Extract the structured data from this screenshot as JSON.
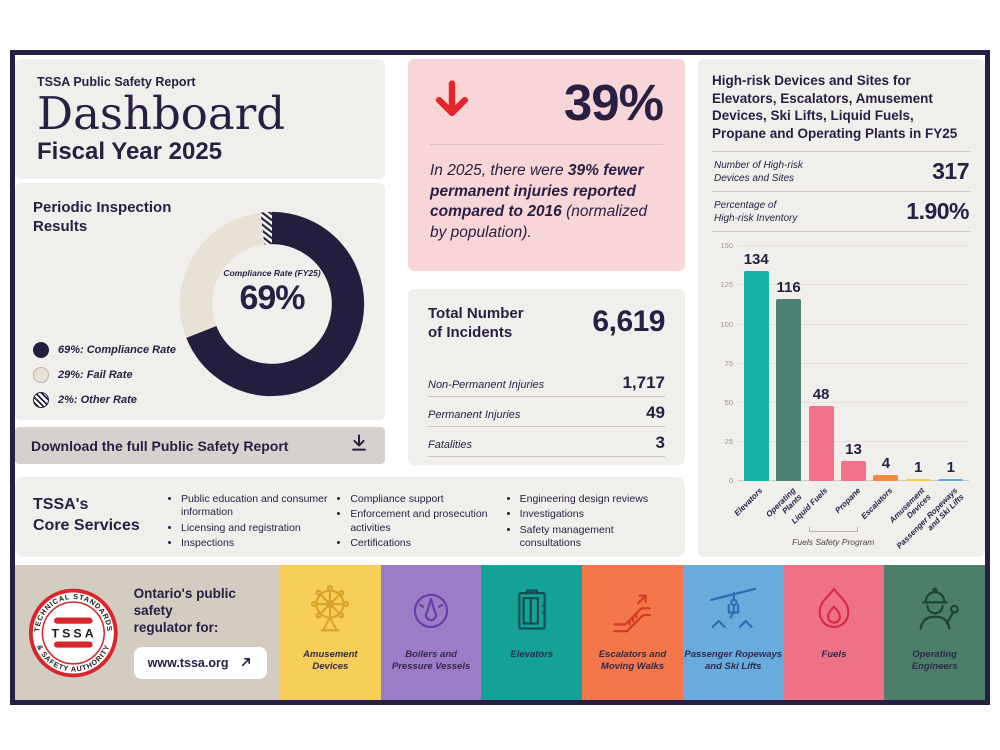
{
  "brand": {
    "navy": "#282044",
    "panel_bg": "#f1efec",
    "pink_bg": "#f8d5d6",
    "red": "#e4252b",
    "download_bg": "#d5d1ce",
    "footer_grey": "#d2ccc1",
    "donut_navy": "#241d3e",
    "donut_cream": "#e7e1d6"
  },
  "header": {
    "eyebrow": "TSSA Public Safety Report",
    "title": "Dashboard",
    "subtitle": "Fiscal Year 2025"
  },
  "inspection": {
    "heading": "Periodic Inspection\nResults",
    "center_label": "Compliance Rate (FY25)",
    "center_value": "69%",
    "segments": [
      {
        "value": 69,
        "style": "navy",
        "label": "69%: Compliance Rate"
      },
      {
        "value": 29,
        "style": "cream",
        "label": "29%: Fail Rate"
      },
      {
        "value": 2,
        "style": "hatch",
        "label": "2%: Other Rate"
      }
    ]
  },
  "download": {
    "label": "Download the full Public Safety Report"
  },
  "highlight": {
    "big_value": "39%",
    "text_prefix": "In 2025, there were ",
    "text_bold": "39% fewer permanent injuries reported compared to 2016",
    "text_suffix": " (normalized by population)."
  },
  "incidents": {
    "heading": "Total Number\nof Incidents",
    "total": "6,619",
    "rows": [
      {
        "label": "Non-Permanent Injuries",
        "value": "1,717"
      },
      {
        "label": "Permanent Injuries",
        "value": "49"
      },
      {
        "label": "Fatalities",
        "value": "3"
      }
    ]
  },
  "high_risk": {
    "title": "High-risk Devices and Sites for Elevators, Escalators, Amusement Devices, Ski Lifts, Liquid Fuels, Propane and Operating Plants in FY25",
    "rows": [
      {
        "label": "Number of High-risk\nDevices and Sites",
        "value": "317"
      },
      {
        "label": "Percentage of\nHigh-risk Inventory",
        "value": "1.90%"
      }
    ]
  },
  "chart_data": [
    {
      "type": "donut",
      "title": "Periodic Inspection Results",
      "labels": [
        "Compliance Rate",
        "Fail Rate",
        "Other Rate"
      ],
      "values": [
        69,
        29,
        2
      ],
      "center_label": "Compliance Rate (FY25)",
      "center_value": "69%"
    },
    {
      "type": "bar",
      "title": "High-risk Devices and Sites in FY25",
      "categories": [
        "Elevators",
        "Operating\nPlants",
        "Liquid Fuels",
        "Propane",
        "Escalators",
        "Amusement\nDevices",
        "Passenger Ropeways\nand Ski Lifts"
      ],
      "values": [
        134,
        116,
        48,
        13,
        4,
        1,
        1
      ],
      "colors": [
        "#16b2a7",
        "#4b8273",
        "#f2728a",
        "#f2728a",
        "#f28a43",
        "#f5c94f",
        "#62a8da"
      ],
      "ylim": [
        0,
        150
      ],
      "yticks": [
        0,
        25,
        50,
        75,
        100,
        125,
        150
      ],
      "grid": true,
      "bracket": {
        "from": 2,
        "to": 3,
        "label": "Fuels Safety Program"
      }
    }
  ],
  "core_services": {
    "heading": "TSSA's\nCore Services",
    "columns": [
      [
        "Public education and consumer information",
        "Licensing and registration",
        "Inspections"
      ],
      [
        "Compliance support",
        "Enforcement and prosecution activities",
        "Certifications"
      ],
      [
        "Engineering design reviews",
        "Investigations",
        "Safety management consultations"
      ]
    ]
  },
  "footer": {
    "logo": {
      "arc_top": "TECHNICAL STANDARDS",
      "arc_bottom": "& SAFETY AUTHORITY",
      "monogram": "TSSA"
    },
    "regulator_label": "Ontario's public safety\nregulator for:",
    "website": "www.tssa.org",
    "tiles": [
      {
        "label": "Amusement\nDevices",
        "color": "#f7ce59",
        "ink": "#d9a42c",
        "icon": "ferris-wheel"
      },
      {
        "label": "Boilers and\nPressure Vessels",
        "color": "#9b7cc6",
        "ink": "#6a3ca8",
        "icon": "pressure-gauge"
      },
      {
        "label": "Elevators",
        "color": "#13a295",
        "ink": "#164b54",
        "icon": "elevator"
      },
      {
        "label": "Escalators and\nMoving Walks",
        "color": "#f3774a",
        "ink": "#d63a26",
        "icon": "escalator"
      },
      {
        "label": "Passenger Ropeways\nand Ski Lifts",
        "color": "#68abdd",
        "ink": "#2d6db3",
        "icon": "chairlift"
      },
      {
        "label": "Fuels",
        "color": "#ee7286",
        "ink": "#d92b48",
        "icon": "flame"
      },
      {
        "label": "Operating\nEngineers",
        "color": "#4b7f6a",
        "ink": "#1e4434",
        "icon": "worker"
      }
    ]
  }
}
